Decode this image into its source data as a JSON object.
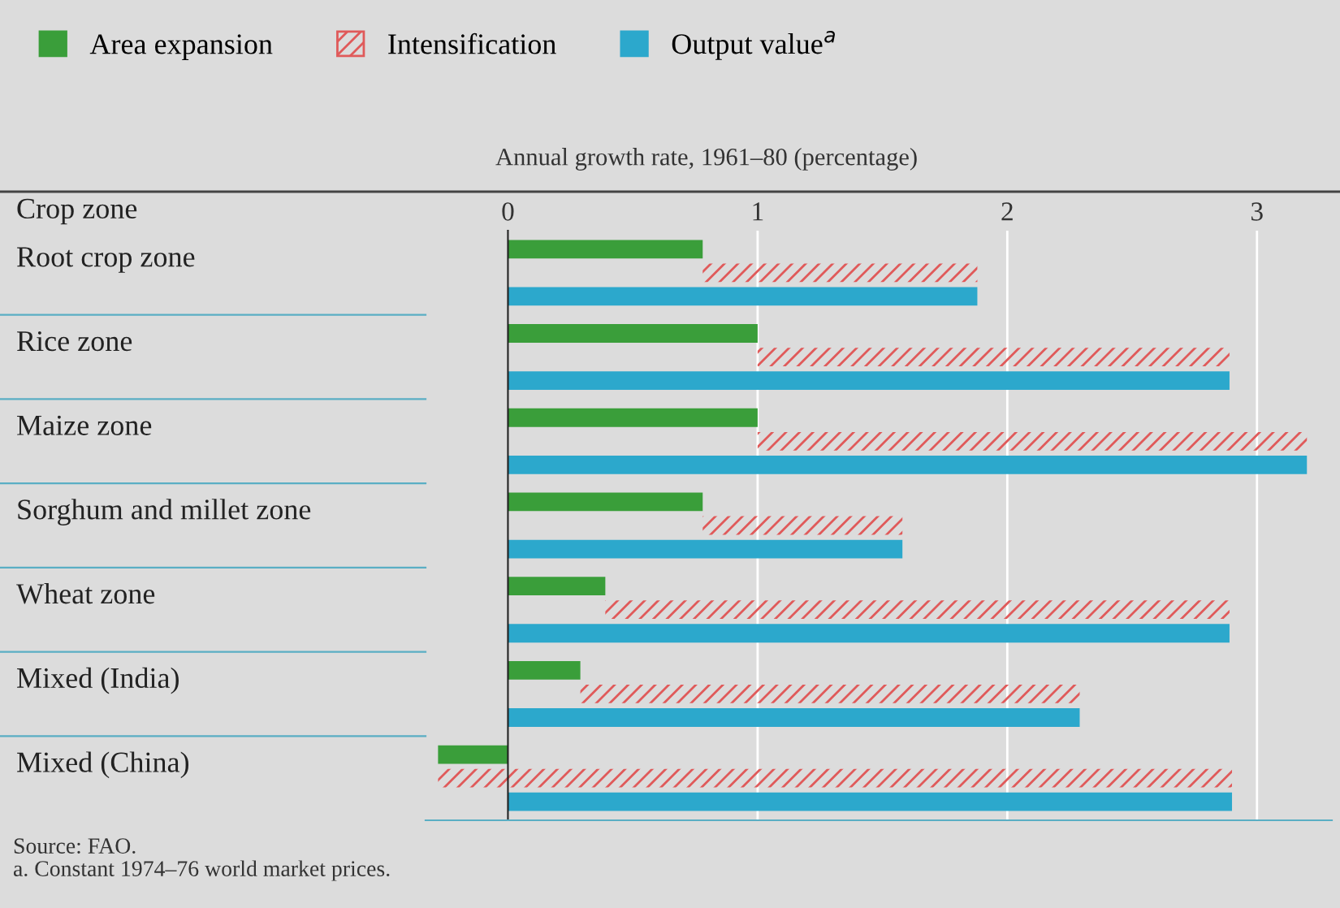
{
  "chart_data": {
    "type": "bar",
    "orientation": "horizontal",
    "xlabel": "Annual growth rate, 1961–80 (percentage)",
    "ylabel": "Crop zone",
    "categories": [
      "Root crop zone",
      "Rice zone",
      "Maize zone",
      "Sorghum and millet zone",
      "Wheat zone",
      "Mixed (India)",
      "Mixed (China)"
    ],
    "series": [
      {
        "name": "Area expansion",
        "color": "#3a9e3a",
        "values": [
          0.78,
          1.0,
          1.0,
          0.78,
          0.39,
          0.29,
          -0.28
        ]
      },
      {
        "name": "Intensification",
        "color": "#e05a5a",
        "base": [
          0.78,
          1.0,
          1.0,
          0.78,
          0.39,
          0.29,
          -0.28
        ],
        "values": [
          1.1,
          1.89,
          2.2,
          0.8,
          2.5,
          2.0,
          3.18
        ]
      },
      {
        "name": "Output value$^{a}$",
        "color": "#2ca8cc",
        "values": [
          1.88,
          2.89,
          3.2,
          1.58,
          2.89,
          2.29,
          2.9
        ]
      }
    ],
    "xlim": [
      -0.33,
      3.3
    ],
    "xticks": [
      0,
      1,
      2,
      3
    ],
    "grid": "x",
    "legend": "top left",
    "annotations": [
      "Source: FAO.",
      "a. Constant 1974–76 world market prices."
    ]
  }
}
